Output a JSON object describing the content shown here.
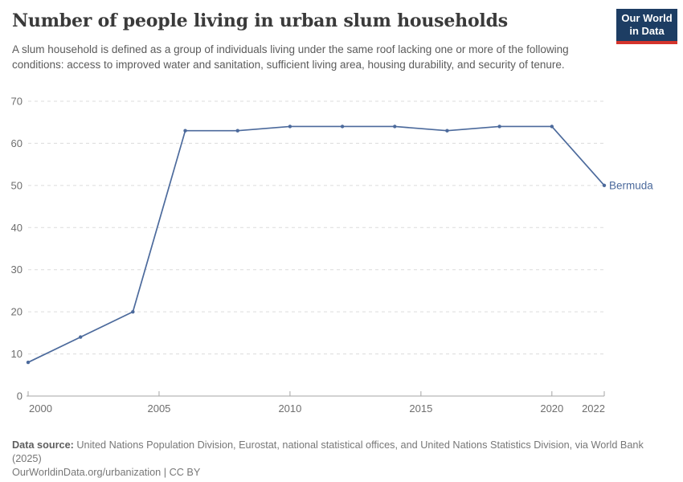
{
  "header": {
    "title": "Number of people living in urban slum households",
    "subtitle": "A slum household is defined as a group of individuals living under the same roof lacking one or more of the following conditions: access to improved water and sanitation, sufficient living area, housing durability, and security of tenure.",
    "logo": {
      "line1": "Our World",
      "line2": "in Data"
    }
  },
  "chart_data": {
    "type": "line",
    "title": "Number of people living in urban slum households",
    "series": [
      {
        "name": "Bermuda",
        "x": [
          2000,
          2002,
          2004,
          2006,
          2008,
          2010,
          2012,
          2014,
          2016,
          2018,
          2020,
          2022
        ],
        "values": [
          8,
          14,
          20,
          63,
          63,
          64,
          64,
          64,
          63,
          64,
          64,
          50
        ]
      }
    ],
    "entity_label": "Bermuda",
    "x_ticks": [
      2000,
      2005,
      2010,
      2015,
      2020,
      2022
    ],
    "y_ticks": [
      0,
      10,
      20,
      30,
      40,
      50,
      60,
      70
    ],
    "xlim": [
      2000,
      2022
    ],
    "ylim": [
      0,
      70
    ],
    "xlabel": "",
    "ylabel": "",
    "grid": "horizontal-dashed",
    "legend_position": "end-of-line-label"
  },
  "colors": {
    "line": "#4c6a9c",
    "grid": "#dcdcdc",
    "axis": "#a5a5a5",
    "tick_label": "#6e6e6e",
    "title": "#3a3a3a",
    "subtitle": "#5b5b5b",
    "footer": "#777777",
    "logo_bg": "#1d3d63",
    "logo_red": "#d4342c"
  },
  "footer": {
    "source_label": "Data source:",
    "source_text": " United Nations Population Division, Eurostat, national statistical offices, and United Nations Statistics Division, via World Bank",
    "source_text_line2": "(2025)",
    "license_text": "OurWorldinData.org/urbanization | CC BY"
  }
}
